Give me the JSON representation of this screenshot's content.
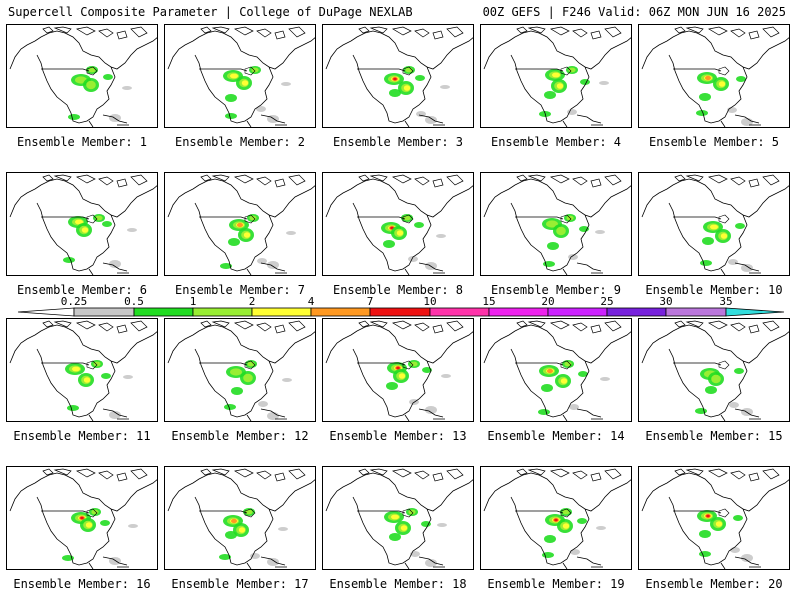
{
  "header": {
    "title_left": "Supercell Composite Parameter | College of DuPage NEXLAB",
    "title_right": "00Z GEFS | F246 Valid: 06Z MON JUN 16 2025"
  },
  "legend": {
    "ticks": [
      "0.25",
      "0.5",
      "1",
      "2",
      "4",
      "7",
      "10",
      "15",
      "20",
      "25",
      "30",
      "35"
    ],
    "colors": [
      "#c8c8c8",
      "#22dd22",
      "#99ee33",
      "#ffff33",
      "#ff9922",
      "#ee1111",
      "#ff33aa",
      "#ee22ee",
      "#cc22ff",
      "#7722dd",
      "#bb77dd",
      "#33dddd"
    ]
  },
  "members": [
    {
      "label": "Ensemble Member: 1",
      "intensity": 2
    },
    {
      "label": "Ensemble Member: 2",
      "intensity": 3
    },
    {
      "label": "Ensemble Member: 3",
      "intensity": 5
    },
    {
      "label": "Ensemble Member: 4",
      "intensity": 3
    },
    {
      "label": "Ensemble Member: 5",
      "intensity": 4
    },
    {
      "label": "Ensemble Member: 6",
      "intensity": 3
    },
    {
      "label": "Ensemble Member: 7",
      "intensity": 4
    },
    {
      "label": "Ensemble Member: 8",
      "intensity": 5
    },
    {
      "label": "Ensemble Member: 9",
      "intensity": 2
    },
    {
      "label": "Ensemble Member: 10",
      "intensity": 3
    },
    {
      "label": "Ensemble Member: 11",
      "intensity": 3
    },
    {
      "label": "Ensemble Member: 12",
      "intensity": 2
    },
    {
      "label": "Ensemble Member: 13",
      "intensity": 5
    },
    {
      "label": "Ensemble Member: 14",
      "intensity": 4
    },
    {
      "label": "Ensemble Member: 15",
      "intensity": 2
    },
    {
      "label": "Ensemble Member: 16",
      "intensity": 5
    },
    {
      "label": "Ensemble Member: 17",
      "intensity": 4
    },
    {
      "label": "Ensemble Member: 18",
      "intensity": 3
    },
    {
      "label": "Ensemble Member: 19",
      "intensity": 5
    },
    {
      "label": "Ensemble Member: 20",
      "intensity": 5
    }
  ]
}
